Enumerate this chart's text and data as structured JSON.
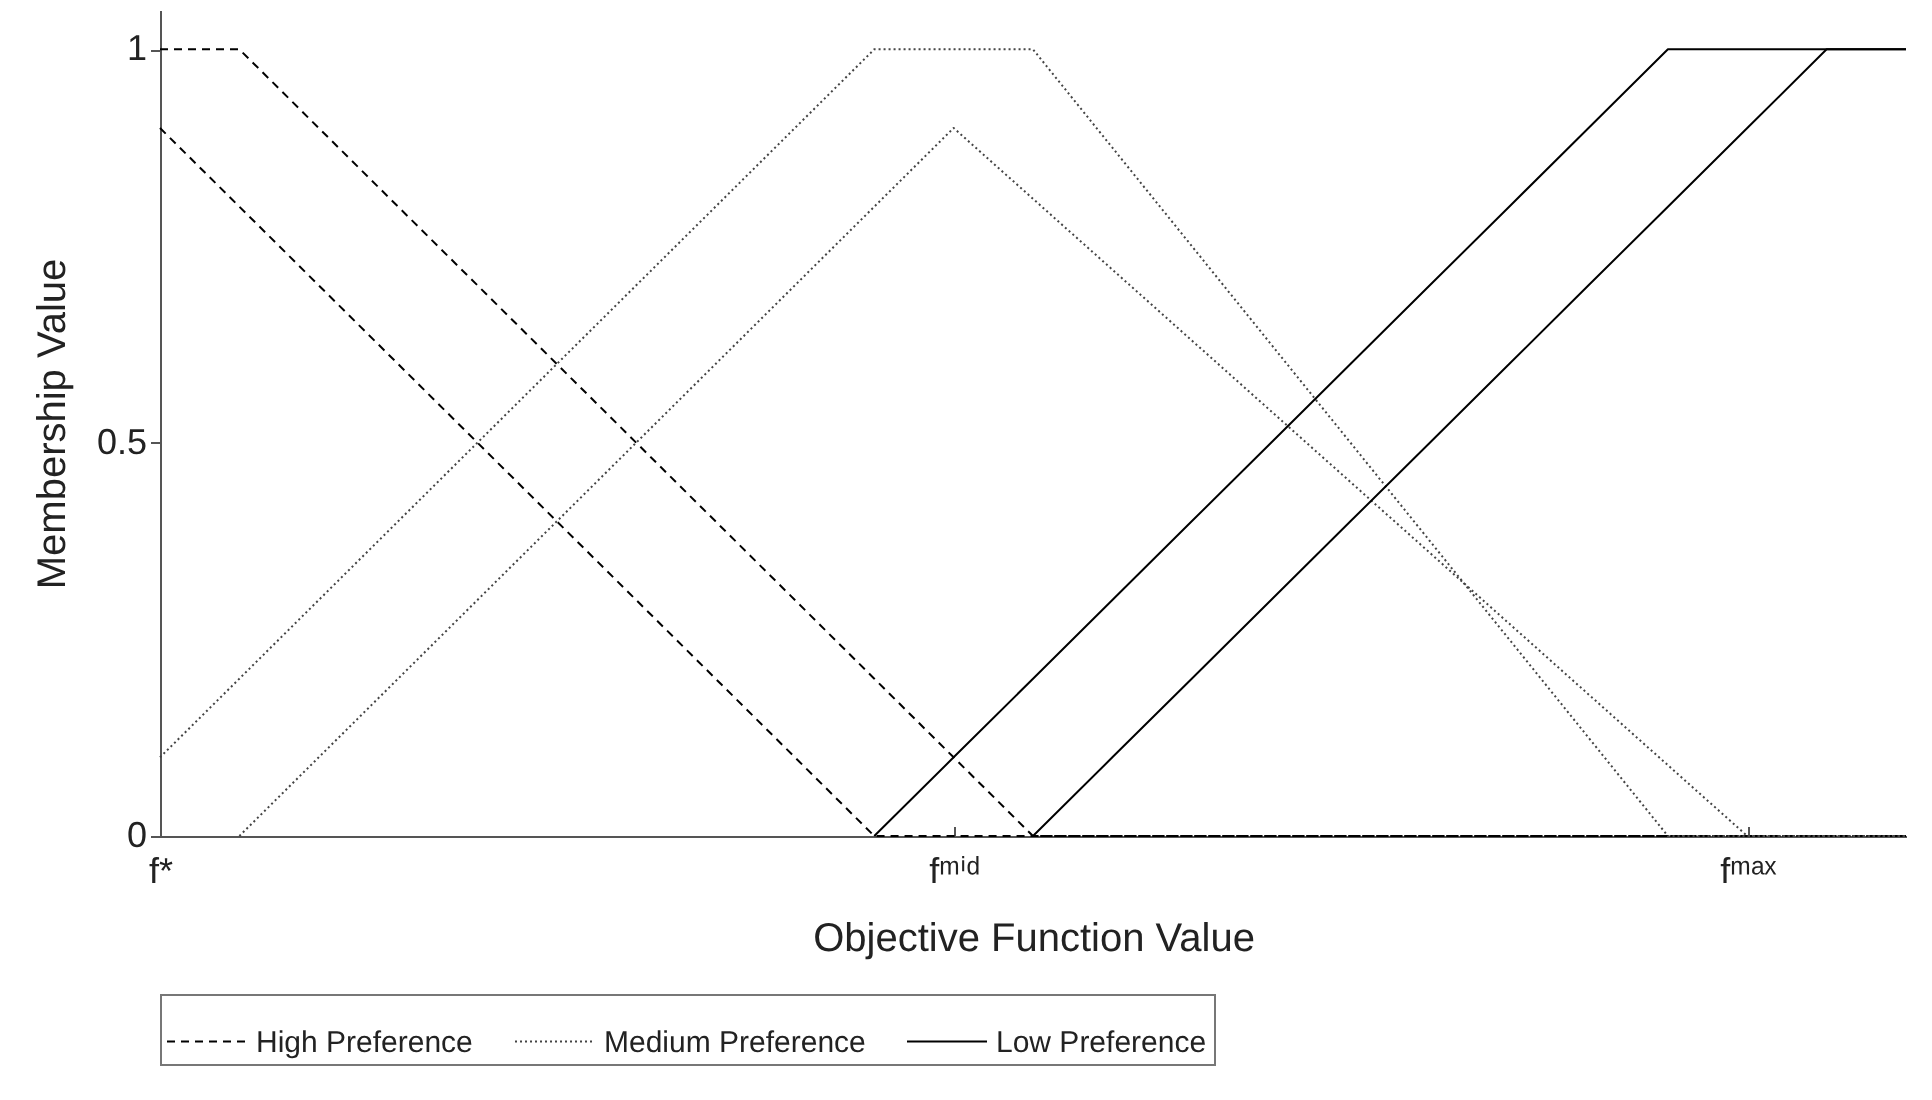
{
  "chart_data": {
    "type": "line",
    "xlabel": "Objective Function Value",
    "ylabel": "Membership Value",
    "categories": [
      "f*",
      null,
      null,
      null,
      null,
      null,
      null,
      null,
      null,
      null,
      "fᵐⁱᵈ",
      null,
      null,
      null,
      null,
      null,
      null,
      null,
      null,
      null,
      "fᵐᵃˣ",
      null,
      null
    ],
    "ylim": [
      0,
      1.05
    ],
    "yticks": [
      0,
      0.5,
      1
    ],
    "legend": "bottom",
    "series": [
      {
        "name": "High Preference",
        "color": "#000000",
        "line_style": "dashed",
        "values": [
          1,
          1,
          0.9,
          0.8,
          0.7,
          0.6,
          0.5,
          0.4,
          0.3,
          0.2,
          0.1,
          0,
          0,
          0,
          0,
          0,
          0,
          0,
          0,
          0,
          0,
          0,
          0
        ]
      },
      {
        "color": "#000000",
        "line_style": "dashed",
        "values": [
          0.9,
          0.8,
          0.7,
          0.6,
          0.5,
          0.4,
          0.3,
          0.2,
          0.1,
          0,
          0,
          0,
          0,
          0,
          0,
          0,
          0,
          0,
          0,
          0,
          0,
          0,
          0
        ]
      },
      {
        "name": "Medium Preference",
        "color": "#444444",
        "line_style": "dotted",
        "values": [
          0.1,
          0.2,
          0.3,
          0.4,
          0.5,
          0.6,
          0.7,
          0.8,
          0.9,
          1,
          1,
          1,
          0.875,
          0.75,
          0.625,
          0.5,
          0.375,
          0.25,
          0.125,
          0,
          0,
          0,
          0
        ]
      },
      {
        "color": "#444444",
        "line_style": "dotted",
        "values": [
          null,
          0,
          0.1,
          0.2,
          0.3,
          0.4,
          0.5,
          0.6,
          0.7,
          0.8,
          0.9,
          0.81,
          0.72,
          0.63,
          0.54,
          0.45,
          0.36,
          0.27,
          0.18,
          0.09,
          0,
          0,
          0
        ]
      },
      {
        "name": "Low Preference",
        "color": "#000000",
        "line_style": "solid",
        "values": [
          null,
          null,
          null,
          null,
          null,
          null,
          null,
          null,
          null,
          0,
          0.1,
          0.2,
          0.3,
          0.4,
          0.5,
          0.6,
          0.7,
          0.8,
          0.9,
          1,
          1,
          1,
          1
        ]
      },
      {
        "color": "#000000",
        "line_style": "solid",
        "values": [
          null,
          null,
          null,
          null,
          null,
          null,
          null,
          null,
          null,
          null,
          null,
          0,
          0.1,
          0.2,
          0.3,
          0.4,
          0.5,
          0.6,
          0.7,
          0.8,
          0.9,
          1,
          1
        ]
      }
    ]
  }
}
